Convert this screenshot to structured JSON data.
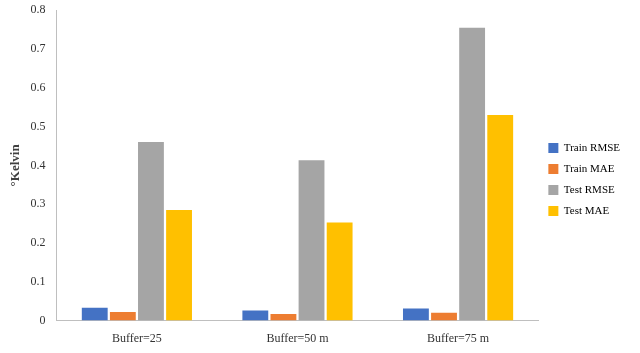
{
  "chart_data": {
    "type": "bar",
    "y_label": "°Kelvin",
    "categories": [
      "Buffer=25",
      "Buffer=50 m",
      "Buffer=75 m"
    ],
    "series": [
      {
        "name": "Train RMSE",
        "color": "#4472c4",
        "values": [
          0.033,
          0.026,
          0.031
        ]
      },
      {
        "name": "Train MAE",
        "color": "#ed7d31",
        "values": [
          0.022,
          0.017,
          0.02
        ]
      },
      {
        "name": "Test RMSE",
        "color": "#a5a5a5",
        "values": [
          0.46,
          0.413,
          0.755
        ]
      },
      {
        "name": "Test MAE",
        "color": "#ffc000",
        "values": [
          0.285,
          0.253,
          0.53
        ]
      }
    ],
    "ylim": [
      0,
      0.8
    ],
    "yticks": [
      0,
      0.1,
      0.2,
      0.3,
      0.4,
      0.5,
      0.6,
      0.7,
      0.8
    ],
    "grid": false,
    "legend": "right"
  }
}
